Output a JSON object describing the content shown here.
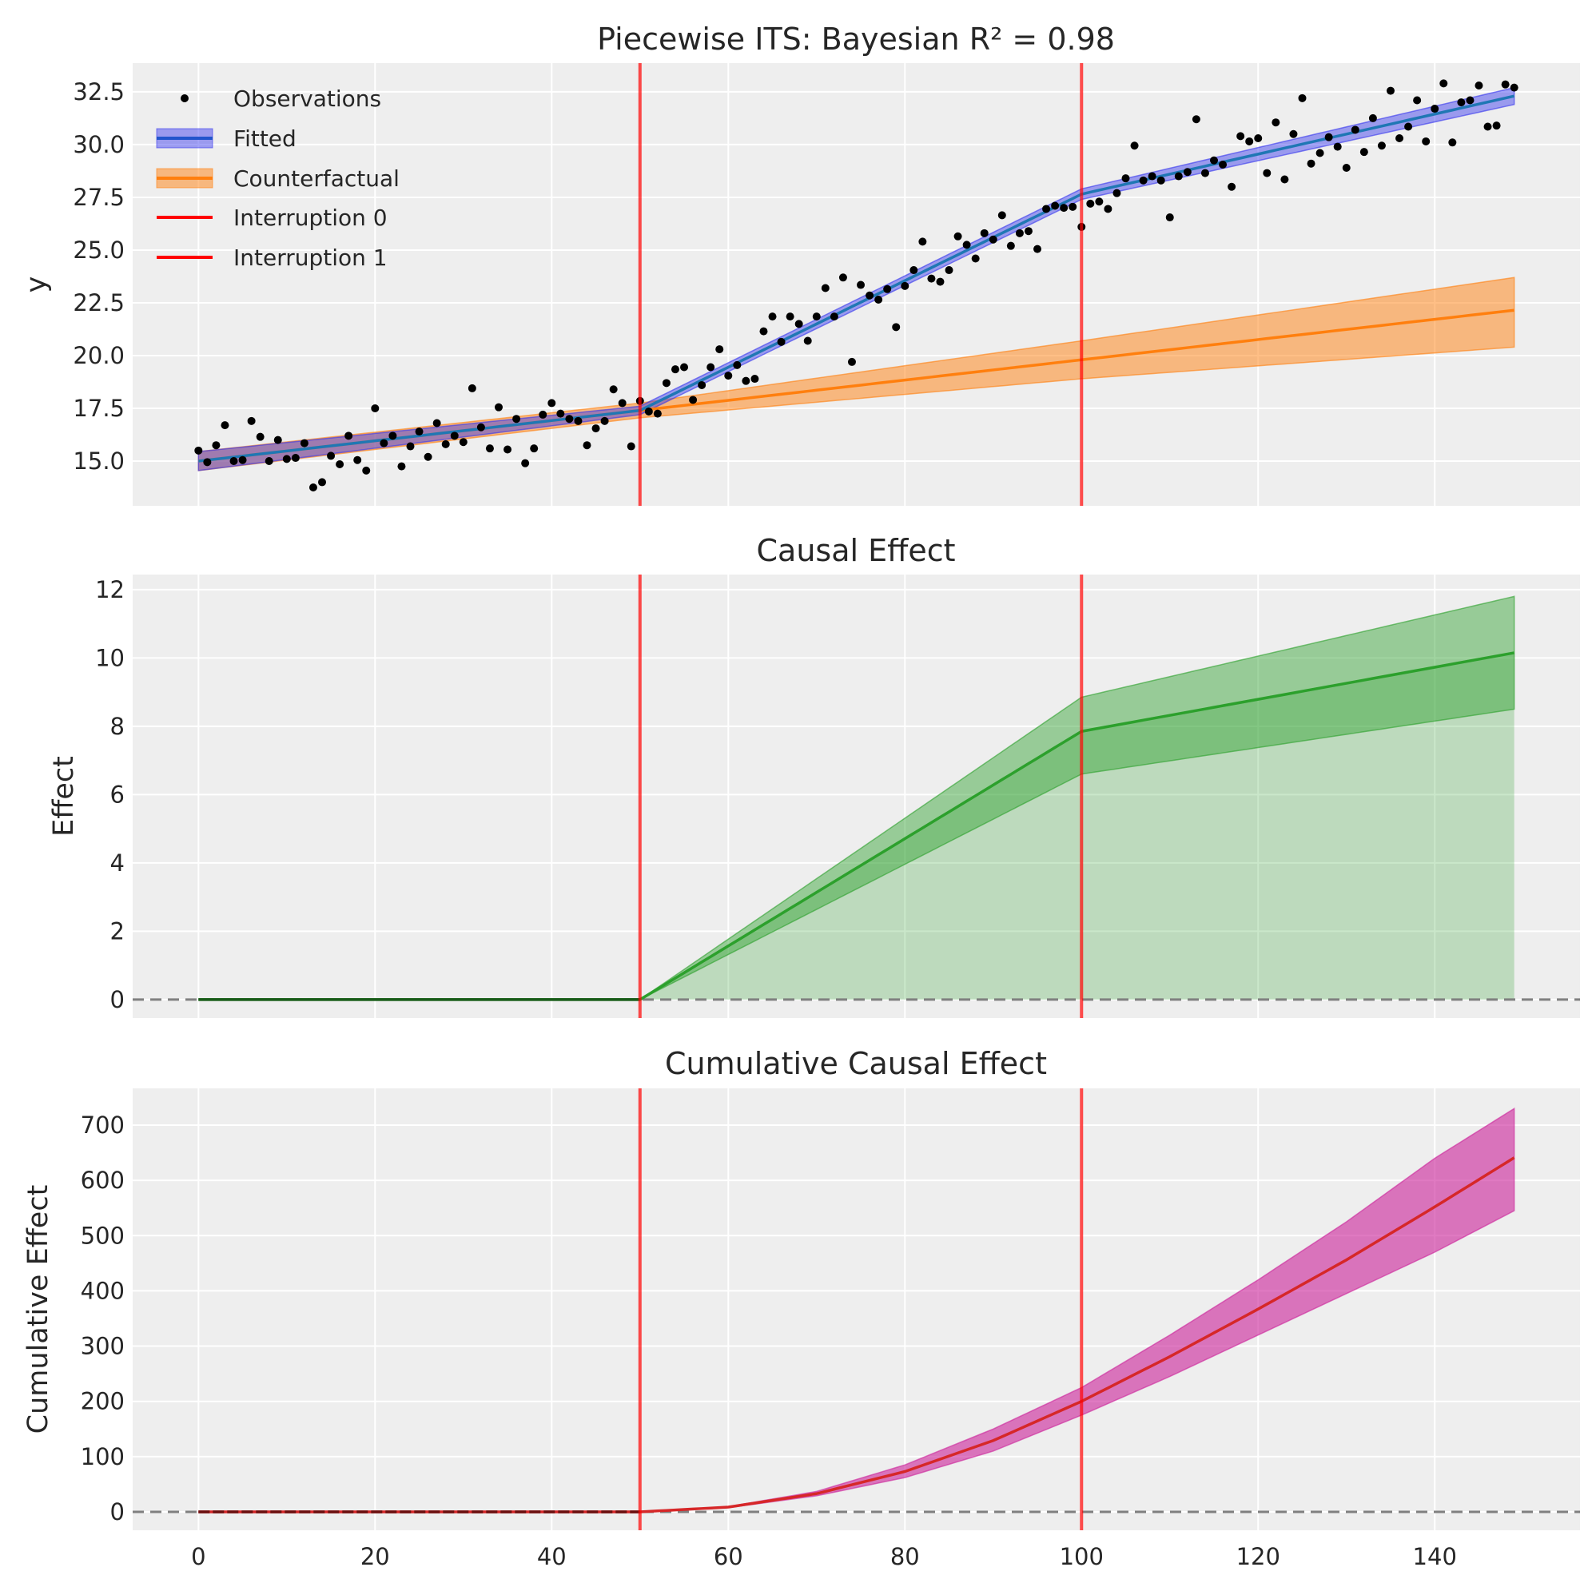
{
  "chart_data": [
    {
      "type": "line",
      "title": "Piecewise ITS: Bayesian R² = 0.98",
      "ylabel": "y",
      "xlabel": "",
      "xlim": [
        -7.45,
        156.45
      ],
      "ylim": [
        12.88,
        33.86
      ],
      "yticks": [
        15.0,
        17.5,
        20.0,
        22.5,
        25.0,
        27.5,
        30.0,
        32.5
      ],
      "ytick_labels": [
        "15.0",
        "17.5",
        "20.0",
        "22.5",
        "25.0",
        "27.5",
        "30.0",
        "32.5"
      ],
      "grid": true,
      "legend": {
        "placement": "top-left",
        "entries": [
          "Observations",
          "Fitted",
          "Counterfactual",
          "Interruption 0",
          "Interruption 1"
        ]
      },
      "interruptions": [
        50,
        100
      ],
      "colors": {
        "observations": "#000000",
        "fitted_line": "#1f77b4",
        "fitted_band": "#3333ee",
        "counterfactual_line": "#ff7f0e",
        "counterfactual_band": "#ff7f0e",
        "interruption": "#ff0000",
        "background": "#eeeeee"
      },
      "observations": [
        15.5,
        14.95,
        15.75,
        16.7,
        15.0,
        15.05,
        16.9,
        16.15,
        15.0,
        16.0,
        15.1,
        15.15,
        15.85,
        13.75,
        14.0,
        15.25,
        14.85,
        16.2,
        15.05,
        14.55,
        17.5,
        15.85,
        16.2,
        14.75,
        15.7,
        16.4,
        15.2,
        16.8,
        15.8,
        16.2,
        15.9,
        18.45,
        16.6,
        15.6,
        17.55,
        15.55,
        17.0,
        14.9,
        15.6,
        17.2,
        17.75,
        17.25,
        17.0,
        16.9,
        15.75,
        16.55,
        16.9,
        18.4,
        17.75,
        15.7,
        17.85,
        17.35,
        17.25,
        18.7,
        19.35,
        19.45,
        17.9,
        18.6,
        19.45,
        20.3,
        19.05,
        19.55,
        18.8,
        18.9,
        21.15,
        21.85,
        20.65,
        21.85,
        21.5,
        20.7,
        21.85,
        23.2,
        21.85,
        23.7,
        19.7,
        23.35,
        22.85,
        22.65,
        23.15,
        21.35,
        23.3,
        24.05,
        25.4,
        23.65,
        23.5,
        24.05,
        25.65,
        25.25,
        24.6,
        25.8,
        25.5,
        26.65,
        25.2,
        25.8,
        25.9,
        25.05,
        26.95,
        27.1,
        27.0,
        27.05,
        26.1,
        27.2,
        27.3,
        26.95,
        27.7,
        28.4,
        29.95,
        28.3,
        28.5,
        28.3,
        26.55,
        28.5,
        28.7,
        31.2,
        28.65,
        29.25,
        29.05,
        28.0,
        30.4,
        30.15,
        30.3,
        28.65,
        31.05,
        28.35,
        30.5,
        32.2,
        29.1,
        29.6,
        30.35,
        29.9,
        28.9,
        30.7,
        29.65,
        31.25,
        29.95,
        32.55,
        30.3,
        30.85,
        32.1,
        30.15,
        31.7,
        32.9,
        30.1,
        32.0,
        32.1,
        32.8,
        30.85,
        30.9,
        32.85,
        32.7
      ],
      "fitted": {
        "x": [
          0,
          50,
          100,
          149
        ],
        "mean": [
          15.0,
          17.4,
          27.65,
          32.3
        ],
        "lower": [
          14.55,
          17.2,
          27.4,
          31.9
        ],
        "upper": [
          15.45,
          17.6,
          27.9,
          32.7
        ]
      },
      "counterfactual": {
        "x": [
          0,
          50,
          100,
          149
        ],
        "mean": [
          15.0,
          17.4,
          19.8,
          22.15
        ],
        "lower": [
          14.55,
          17.05,
          18.9,
          20.4
        ],
        "upper": [
          15.45,
          17.75,
          20.7,
          23.7
        ]
      }
    },
    {
      "type": "area",
      "title": "Causal Effect",
      "ylabel": "Effect",
      "xlim": [
        -7.45,
        156.45
      ],
      "ylim": [
        -0.54,
        12.44
      ],
      "yticks": [
        0,
        2,
        4,
        6,
        8,
        10,
        12
      ],
      "ytick_labels": [
        "0",
        "2",
        "4",
        "6",
        "8",
        "10",
        "12"
      ],
      "grid": true,
      "reference_line": 0,
      "interruptions": [
        50,
        100
      ],
      "colors": {
        "line": "#2ca02c",
        "band": "#2ca02c",
        "fill": "#2ca02c",
        "zero_line": "#808080"
      },
      "effect": {
        "x": [
          0,
          50,
          100,
          149
        ],
        "mean": [
          0,
          0,
          7.85,
          10.15
        ],
        "lower": [
          0,
          0,
          6.6,
          8.5
        ],
        "upper": [
          0,
          0,
          8.85,
          11.8
        ]
      }
    },
    {
      "type": "area",
      "title": "Cumulative Causal Effect",
      "ylabel": "Cumulative Effect",
      "xlim": [
        -7.45,
        156.45
      ],
      "ylim": [
        -33.3,
        766.5
      ],
      "yticks": [
        0,
        100,
        200,
        300,
        400,
        500,
        600,
        700
      ],
      "ytick_labels": [
        "0",
        "100",
        "200",
        "300",
        "400",
        "500",
        "600",
        "700"
      ],
      "xticks": [
        0,
        20,
        40,
        60,
        80,
        100,
        120,
        140
      ],
      "xtick_labels": [
        "0",
        "20",
        "40",
        "60",
        "80",
        "100",
        "120",
        "140"
      ],
      "grid": true,
      "reference_line": 0,
      "interruptions": [
        50,
        100
      ],
      "colors": {
        "line": "#d62728",
        "band": "#cc2299",
        "zero_line": "#808080"
      },
      "cumulative": {
        "x": [
          0,
          50,
          60,
          70,
          80,
          90,
          100,
          110,
          120,
          130,
          140,
          149
        ],
        "mean": [
          0,
          0,
          8.6,
          33,
          73,
          129,
          200,
          281,
          367,
          456,
          552,
          641
        ],
        "lower": [
          0,
          0,
          7.5,
          29,
          62,
          110,
          175,
          245,
          320,
          395,
          470,
          545
        ],
        "upper": [
          0,
          0,
          9.5,
          37,
          85,
          150,
          225,
          320,
          420,
          525,
          640,
          730
        ]
      }
    }
  ]
}
